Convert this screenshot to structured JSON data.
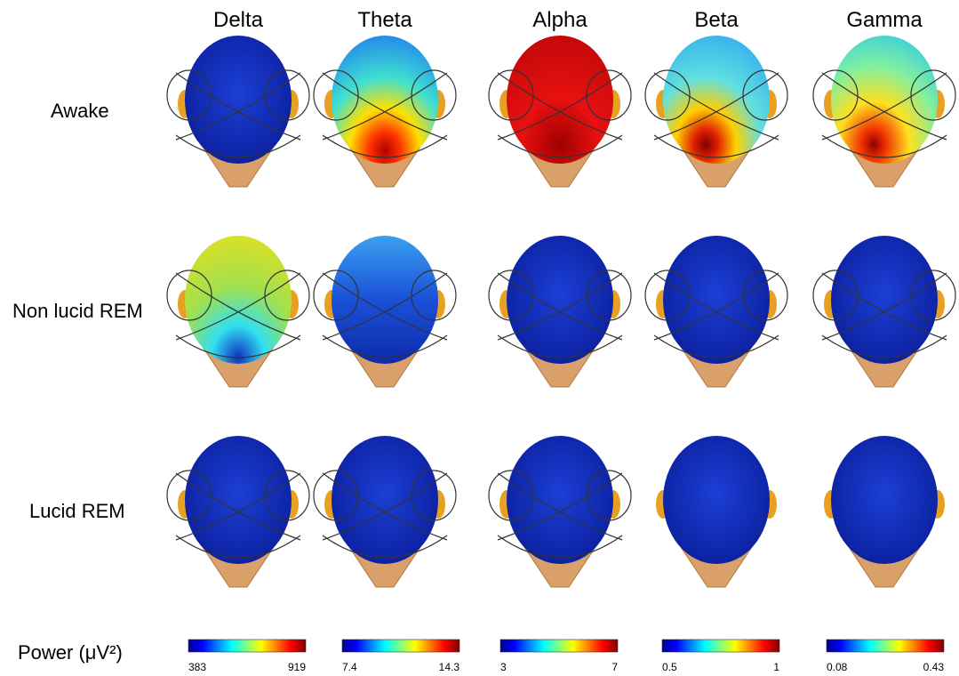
{
  "columns": [
    "Delta",
    "Theta",
    "Alpha",
    "Beta",
    "Gamma"
  ],
  "rows": [
    "Awake",
    "Non lucid REM",
    "Lucid REM"
  ],
  "legend": {
    "label": "Power (μV²)",
    "colorbars": [
      {
        "min": "383",
        "max": "919"
      },
      {
        "min": "7.4",
        "max": "14.3"
      },
      {
        "min": "3",
        "max": "7"
      },
      {
        "min": "0.5",
        "max": "1"
      },
      {
        "min": "0.08",
        "max": "0.43"
      }
    ]
  }
}
